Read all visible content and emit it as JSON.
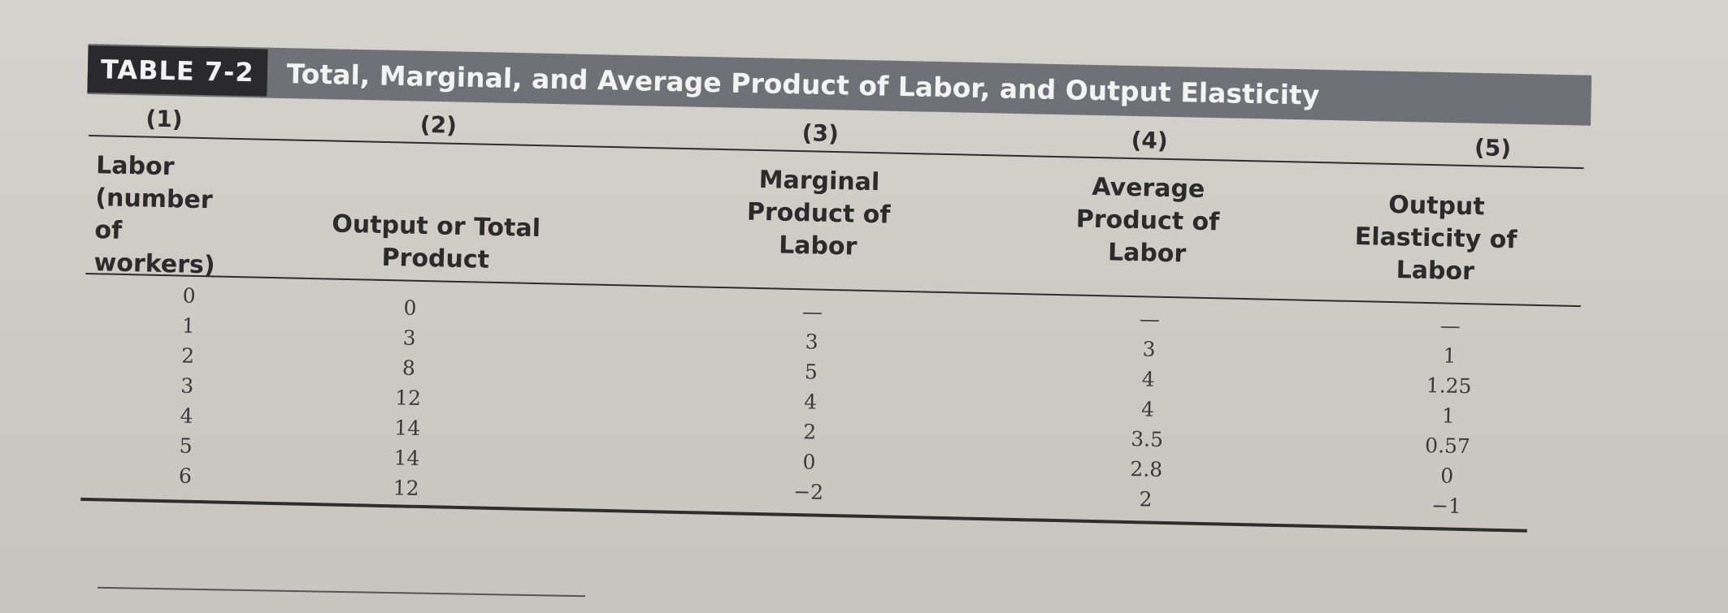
{
  "table": {
    "tag": "TABLE 7-2",
    "title": "Total, Marginal, and Average Product of Labor, and Output Elasticity",
    "column_numbers": [
      "(1)",
      "(2)",
      "(3)",
      "(4)",
      "(5)"
    ],
    "headers": {
      "labor": [
        "Labor",
        "(number of",
        "workers)"
      ],
      "total": [
        "Output or Total",
        "Product"
      ],
      "marginal": [
        "Marginal",
        "Product of",
        "Labor"
      ],
      "average": [
        "Average",
        "Product of",
        "Labor"
      ],
      "elasticity": [
        "Output",
        "Elasticity of",
        "Labor"
      ]
    },
    "rows": [
      [
        "0",
        "0",
        "—",
        "—",
        "—"
      ],
      [
        "1",
        "3",
        "3",
        "3",
        "1"
      ],
      [
        "2",
        "8",
        "5",
        "4",
        "1.25"
      ],
      [
        "3",
        "12",
        "4",
        "4",
        "1"
      ],
      [
        "4",
        "14",
        "2",
        "3.5",
        "0.57"
      ],
      [
        "5",
        "14",
        "0",
        "2.8",
        "0"
      ],
      [
        "6",
        "12",
        "−2",
        "2",
        "−1"
      ]
    ]
  }
}
